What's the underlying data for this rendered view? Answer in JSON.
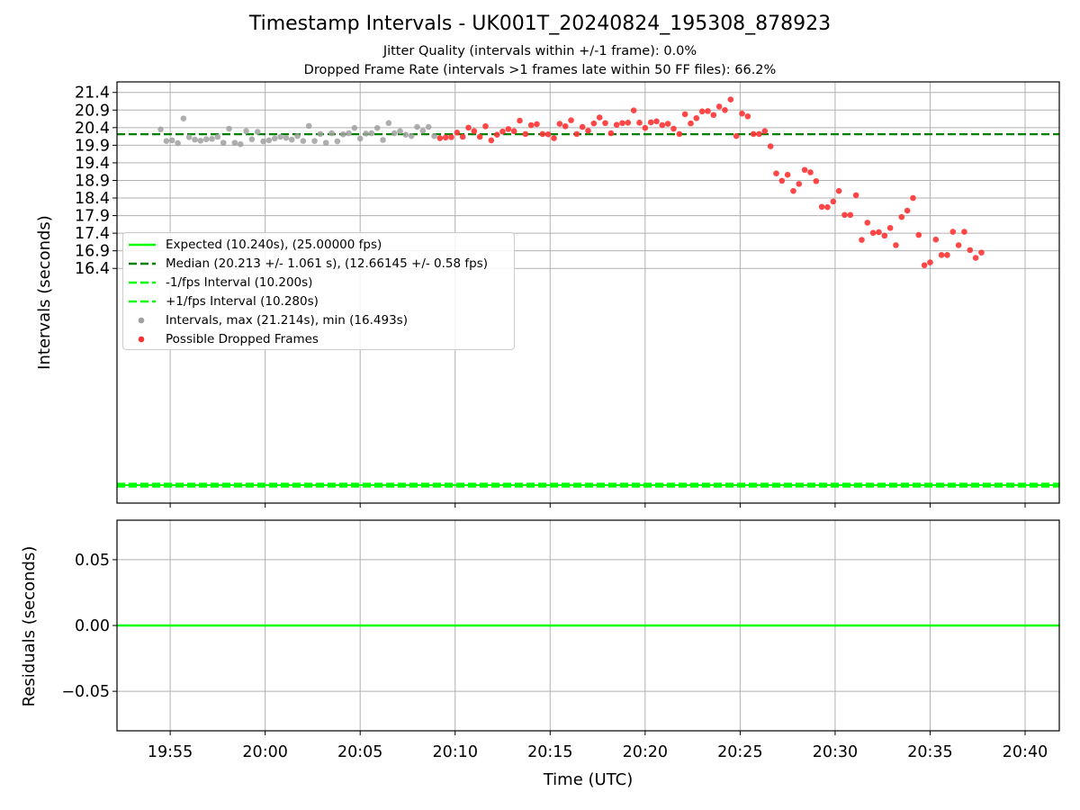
{
  "title": "Timestamp Intervals - UK001T_20240824_195308_878923",
  "subtitle_1": "Jitter Quality (intervals within +/-1 frame): 0.0%",
  "subtitle_2": "Dropped Frame Rate (intervals >1 frames late within 50 FF files): 66.2%",
  "legend": {
    "expected": "Expected (10.240s), (25.00000 fps)",
    "median": "Median (20.213 +/- 1.061 s), (12.66145 +/- 0.58 fps)",
    "minus_fps": "-1/fps Interval (10.200s)",
    "plus_fps": "+1/fps Interval (10.280s)",
    "intervals": "Intervals, max (21.214s), min (16.493s)",
    "dropped": "Possible Dropped Frames"
  },
  "colors": {
    "expected": "#00ff00",
    "median": "#008000",
    "interval_bounds": "#00ff00",
    "intervals": "#a0a0a0",
    "dropped": "#ff3333",
    "residual": "#00ff00",
    "grid": "#b0b0b0"
  },
  "chart_data": [
    {
      "type": "scatter",
      "ylabel": "Intervals (seconds)",
      "xlabel": "",
      "x_ticks": [
        "19:55",
        "20:00",
        "20:05",
        "20:10",
        "20:15",
        "20:20",
        "20:25",
        "20:30",
        "20:35",
        "20:40"
      ],
      "x_tick_minutes": [
        55,
        60,
        65,
        70,
        75,
        80,
        85,
        90,
        95,
        100
      ],
      "xlim_minutes": [
        52.2,
        101.8
      ],
      "x_note": "x values are minutes after 19:00 UTC",
      "ylim": [
        9.73,
        21.7
      ],
      "y_ticks": [
        21.4,
        20.9,
        20.4,
        19.9,
        19.4,
        18.9,
        18.4,
        17.9,
        17.4,
        16.9,
        16.4
      ],
      "y_tick_labels": [
        "21.4",
        "20.9",
        "20.4",
        "19.9",
        "19.4",
        "18.9",
        "18.4",
        "17.9",
        "17.4",
        "16.9",
        "16.4"
      ],
      "grid": true,
      "legend_position": "center-left",
      "lines": [
        {
          "name": "Expected (10.240s), (25.00000 fps)",
          "y": 10.24,
          "style": "solid"
        },
        {
          "name": "Median (20.213 +/- 1.061 s), (12.66145 +/- 0.58 fps)",
          "y": 20.213,
          "style": "dashed"
        },
        {
          "name": "-1/fps Interval (10.200s)",
          "y": 10.2,
          "style": "dashed"
        },
        {
          "name": "+1/fps Interval (10.280s)",
          "y": 10.28,
          "style": "dashed"
        }
      ],
      "series": [
        {
          "name": "Intervals, max (21.214s), min (16.493s)",
          "points": [
            [
              54.5,
              20.35
            ],
            [
              54.8,
              20.02
            ],
            [
              55.1,
              20.04
            ],
            [
              55.4,
              19.96
            ],
            [
              55.7,
              20.66
            ],
            [
              56.0,
              20.13
            ],
            [
              56.3,
              20.06
            ],
            [
              56.6,
              20.03
            ],
            [
              56.9,
              20.07
            ],
            [
              57.2,
              20.08
            ],
            [
              57.5,
              20.14
            ],
            [
              57.8,
              19.97
            ],
            [
              58.1,
              20.37
            ],
            [
              58.4,
              19.97
            ],
            [
              58.7,
              19.93
            ],
            [
              59.0,
              20.3
            ],
            [
              59.3,
              20.07
            ],
            [
              59.6,
              20.28
            ],
            [
              59.9,
              20.01
            ],
            [
              60.2,
              20.04
            ],
            [
              60.5,
              20.09
            ],
            [
              60.8,
              20.14
            ],
            [
              61.1,
              20.11
            ],
            [
              61.4,
              20.06
            ],
            [
              61.7,
              20.16
            ],
            [
              62.0,
              20.02
            ],
            [
              62.3,
              20.45
            ],
            [
              62.6,
              20.02
            ],
            [
              62.9,
              20.22
            ],
            [
              63.2,
              19.97
            ],
            [
              63.5,
              20.24
            ],
            [
              63.8,
              20.01
            ],
            [
              64.1,
              20.21
            ],
            [
              64.4,
              20.24
            ],
            [
              64.7,
              20.39
            ],
            [
              65.0,
              20.09
            ],
            [
              65.3,
              20.23
            ],
            [
              65.6,
              20.24
            ],
            [
              65.9,
              20.39
            ],
            [
              66.2,
              20.05
            ],
            [
              66.5,
              20.53
            ],
            [
              66.8,
              20.24
            ],
            [
              67.1,
              20.3
            ],
            [
              67.4,
              20.2
            ],
            [
              67.7,
              20.16
            ],
            [
              68.0,
              20.42
            ],
            [
              68.3,
              20.31
            ],
            [
              68.6,
              20.42
            ],
            [
              68.9,
              20.16
            ]
          ]
        },
        {
          "name": "Possible Dropped Frames",
          "points": [
            [
              69.2,
              20.1
            ],
            [
              69.5,
              20.12
            ],
            [
              69.8,
              20.13
            ],
            [
              70.1,
              20.26
            ],
            [
              70.4,
              20.14
            ],
            [
              70.7,
              20.4
            ],
            [
              71.0,
              20.3
            ],
            [
              71.3,
              20.14
            ],
            [
              71.6,
              20.44
            ],
            [
              71.9,
              20.04
            ],
            [
              72.2,
              20.2
            ],
            [
              72.5,
              20.29
            ],
            [
              72.8,
              20.36
            ],
            [
              73.1,
              20.3
            ],
            [
              73.4,
              20.6
            ],
            [
              73.7,
              20.22
            ],
            [
              74.0,
              20.47
            ],
            [
              74.3,
              20.5
            ],
            [
              74.6,
              20.22
            ],
            [
              74.9,
              20.21
            ],
            [
              75.2,
              20.1
            ],
            [
              75.5,
              20.51
            ],
            [
              75.8,
              20.44
            ],
            [
              76.1,
              20.61
            ],
            [
              76.4,
              20.22
            ],
            [
              76.7,
              20.42
            ],
            [
              77.0,
              20.31
            ],
            [
              77.3,
              20.52
            ],
            [
              77.6,
              20.69
            ],
            [
              77.9,
              20.53
            ],
            [
              78.2,
              20.24
            ],
            [
              78.5,
              20.48
            ],
            [
              78.8,
              20.53
            ],
            [
              79.1,
              20.54
            ],
            [
              79.4,
              20.89
            ],
            [
              79.7,
              20.54
            ],
            [
              80.0,
              20.39
            ],
            [
              80.3,
              20.55
            ],
            [
              80.6,
              20.58
            ],
            [
              80.9,
              20.47
            ],
            [
              81.2,
              20.51
            ],
            [
              81.5,
              20.37
            ],
            [
              81.8,
              20.22
            ],
            [
              82.1,
              20.78
            ],
            [
              82.4,
              20.52
            ],
            [
              82.7,
              20.67
            ],
            [
              83.0,
              20.86
            ],
            [
              83.3,
              20.87
            ],
            [
              83.6,
              20.76
            ],
            [
              83.9,
              21.0
            ],
            [
              84.2,
              20.9
            ],
            [
              84.5,
              21.2
            ],
            [
              84.8,
              20.16
            ],
            [
              85.1,
              20.8
            ],
            [
              85.4,
              20.72
            ],
            [
              85.7,
              20.22
            ],
            [
              86.0,
              20.22
            ],
            [
              86.3,
              20.3
            ],
            [
              86.6,
              19.87
            ],
            [
              86.9,
              19.1
            ],
            [
              87.2,
              18.89
            ],
            [
              87.5,
              19.06
            ],
            [
              87.8,
              18.6
            ],
            [
              88.1,
              18.8
            ],
            [
              88.4,
              19.2
            ],
            [
              88.7,
              19.13
            ],
            [
              89.0,
              18.88
            ],
            [
              89.3,
              18.15
            ],
            [
              89.6,
              18.14
            ],
            [
              89.9,
              18.3
            ],
            [
              90.2,
              18.6
            ],
            [
              90.5,
              17.92
            ],
            [
              90.8,
              17.92
            ],
            [
              91.1,
              18.48
            ],
            [
              91.4,
              17.21
            ],
            [
              91.7,
              17.7
            ],
            [
              92.0,
              17.41
            ],
            [
              92.3,
              17.43
            ],
            [
              92.6,
              17.33
            ],
            [
              92.9,
              17.55
            ],
            [
              93.2,
              17.06
            ],
            [
              93.5,
              17.86
            ],
            [
              93.8,
              18.04
            ],
            [
              94.1,
              18.4
            ],
            [
              94.4,
              17.35
            ],
            [
              94.7,
              16.49
            ],
            [
              95.0,
              16.57
            ],
            [
              95.3,
              17.22
            ],
            [
              95.6,
              16.78
            ],
            [
              95.9,
              16.78
            ],
            [
              96.2,
              17.44
            ],
            [
              96.5,
              17.06
            ],
            [
              96.8,
              17.44
            ],
            [
              97.1,
              16.92
            ],
            [
              97.4,
              16.7
            ],
            [
              97.7,
              16.85
            ]
          ]
        }
      ]
    },
    {
      "type": "line",
      "xlabel": "Time (UTC)",
      "ylabel": "Residuals (seconds)",
      "x_ticks": [
        "19:55",
        "20:00",
        "20:05",
        "20:10",
        "20:15",
        "20:20",
        "20:25",
        "20:30",
        "20:35",
        "20:40"
      ],
      "xlim_minutes": [
        52.2,
        101.8
      ],
      "ylim": [
        -0.08,
        0.08
      ],
      "y_ticks": [
        0.05,
        0.0,
        -0.05
      ],
      "y_tick_labels": [
        "0.05",
        "0.00",
        "−0.05"
      ],
      "grid": true,
      "series": [
        {
          "name": "",
          "x": [
            52.2,
            101.8
          ],
          "values": [
            0.0,
            0.0
          ]
        }
      ]
    }
  ]
}
